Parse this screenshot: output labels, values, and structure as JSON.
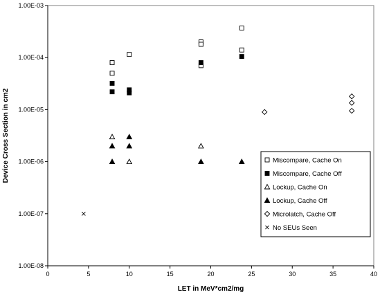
{
  "chart_data": {
    "type": "scatter",
    "title": "",
    "xlabel": "LET in MeV*cm2/mg",
    "ylabel": "Device Cross Section in cm2",
    "xlim": [
      0,
      40
    ],
    "ylim": [
      1e-08,
      0.001
    ],
    "y_scale": "log",
    "x_ticks": [
      0,
      5,
      10,
      15,
      20,
      25,
      30,
      35,
      40
    ],
    "x_tick_labels": [
      "0",
      "5",
      "10",
      "15",
      "20",
      "25",
      "30",
      "35",
      "40"
    ],
    "y_ticks": [
      1e-08,
      1e-07,
      1e-06,
      1e-05,
      0.0001,
      0.001
    ],
    "y_tick_labels": [
      "1.00E-08",
      "1.00E-07",
      "1.00E-06",
      "1.00E-05",
      "1.00E-04",
      "1.00E-03"
    ],
    "horizontal_gridlines": true,
    "vertical_gridlines": false,
    "legend_position": "lower-right",
    "series": [
      {
        "name": "Miscompare, Cache On",
        "marker": "square-open",
        "color": "#000000",
        "points": [
          [
            7.9,
            8e-05
          ],
          [
            7.9,
            5e-05
          ],
          [
            10.0,
            0.000115
          ],
          [
            18.8,
            0.0002
          ],
          [
            18.8,
            0.00018
          ],
          [
            18.8,
            7e-05
          ],
          [
            23.8,
            0.00037
          ],
          [
            23.8,
            0.00014
          ]
        ]
      },
      {
        "name": "Miscompare, Cache Off",
        "marker": "square-filled",
        "color": "#000000",
        "points": [
          [
            7.9,
            3.2e-05
          ],
          [
            7.9,
            2.2e-05
          ],
          [
            10.0,
            2.4e-05
          ],
          [
            10.0,
            2.1e-05
          ],
          [
            18.8,
            8e-05
          ],
          [
            23.8,
            0.000105
          ]
        ]
      },
      {
        "name": "Lockup, Cache On",
        "marker": "triangle-open",
        "color": "#000000",
        "points": [
          [
            7.9,
            3e-06
          ],
          [
            10.0,
            1e-06
          ],
          [
            18.8,
            2e-06
          ]
        ]
      },
      {
        "name": "Lockup, Cache Off",
        "marker": "triangle-filled",
        "color": "#000000",
        "points": [
          [
            7.9,
            2e-06
          ],
          [
            7.9,
            1e-06
          ],
          [
            10.0,
            3e-06
          ],
          [
            10.0,
            2e-06
          ],
          [
            18.8,
            1e-06
          ],
          [
            23.8,
            1e-06
          ]
        ]
      },
      {
        "name": "Microlatch, Cache Off",
        "marker": "diamond-open",
        "color": "#000000",
        "points": [
          [
            26.6,
            9e-06
          ],
          [
            37.3,
            1.8e-05
          ],
          [
            37.3,
            1.35e-05
          ],
          [
            37.3,
            9.5e-06
          ]
        ]
      },
      {
        "name": "No SEUs Seen",
        "marker": "x",
        "color": "#000000",
        "points": [
          [
            4.4,
            1e-07
          ]
        ]
      }
    ]
  }
}
